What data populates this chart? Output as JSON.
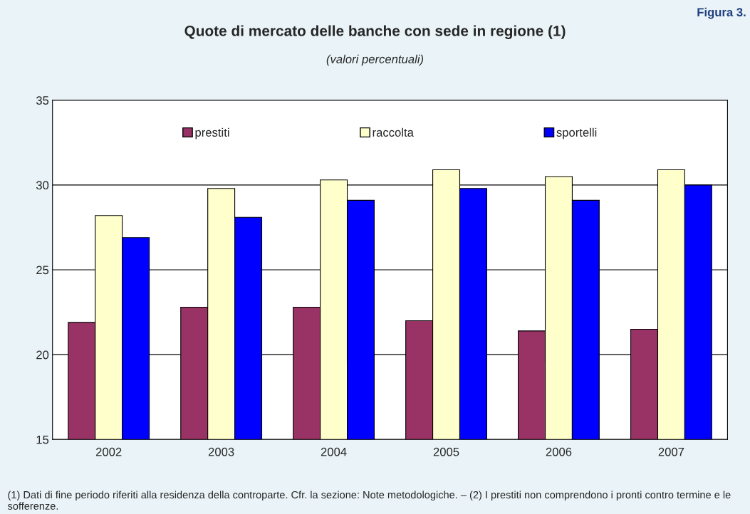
{
  "chart_data": {
    "type": "bar",
    "title": "Quote di mercato delle banche con sede in regione (1)",
    "subtitle": "(valori percentuali)",
    "categories": [
      "2002",
      "2003",
      "2004",
      "2005",
      "2006",
      "2007"
    ],
    "series": [
      {
        "name": "prestiti",
        "color": "#993366",
        "values": [
          21.9,
          22.8,
          22.8,
          22.0,
          21.4,
          21.5
        ]
      },
      {
        "name": "raccolta",
        "color": "#ffffcc",
        "values": [
          28.2,
          29.8,
          30.3,
          30.9,
          30.5,
          30.9
        ]
      },
      {
        "name": "sportelli",
        "color": "#0000ff",
        "values": [
          26.9,
          28.1,
          29.1,
          29.8,
          29.1,
          30.0
        ]
      }
    ],
    "ylim": [
      15,
      35
    ],
    "yticks": [
      15,
      20,
      25,
      30,
      35
    ],
    "grid": "y",
    "legend": "top",
    "annotations": [
      "Figura 3.",
      "(1) Dati di fine periodo riferiti alla residenza della controparte. Cfr. la sezione: Note metodologiche. – (2) I prestiti non comprendono i pronti contro termine e le sofferenze."
    ]
  }
}
